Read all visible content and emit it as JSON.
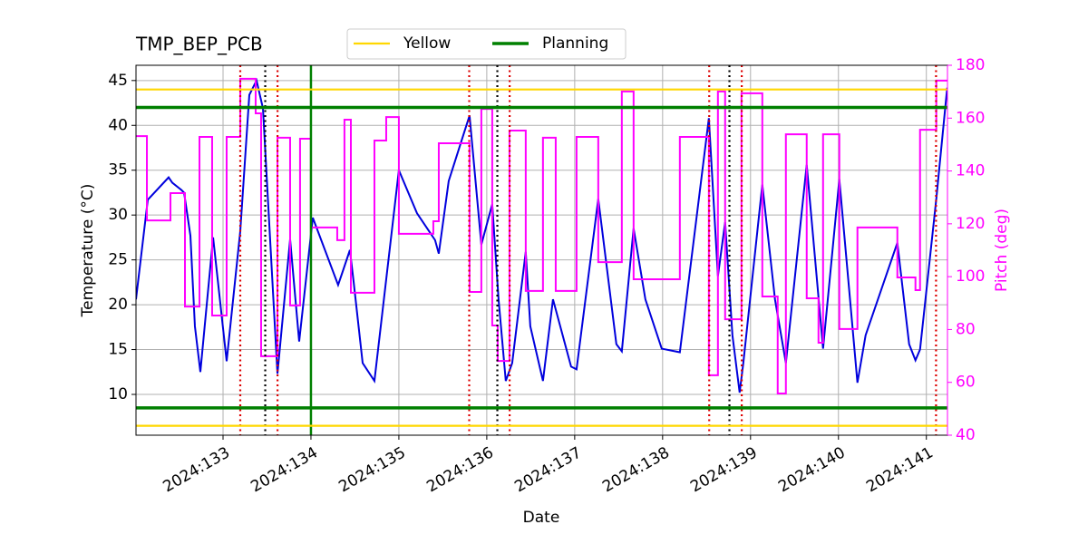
{
  "chart_data": {
    "type": "line",
    "title": "TMP_BEP_PCB",
    "xlabel": "Date",
    "ylabel": "Temperature (°C)",
    "y2label": "Pitch (deg)",
    "y2color": "#ff00ff",
    "grid": true,
    "legend": "upper center",
    "xlim": [
      132.01,
      141.24
    ],
    "xticks": [
      {
        "value": 133,
        "label": "2024:133"
      },
      {
        "value": 134,
        "label": "2024:134"
      },
      {
        "value": 135,
        "label": "2024:135"
      },
      {
        "value": 136,
        "label": "2024:136"
      },
      {
        "value": 137,
        "label": "2024:137"
      },
      {
        "value": 138,
        "label": "2024:138"
      },
      {
        "value": 139,
        "label": "2024:139"
      },
      {
        "value": 140,
        "label": "2024:140"
      },
      {
        "value": 141,
        "label": "2024:141"
      }
    ],
    "ylim": [
      5.45,
      46.7
    ],
    "yticks": [
      10,
      15,
      20,
      25,
      30,
      35,
      40,
      45
    ],
    "y2lim": [
      40,
      180
    ],
    "y2ticks": [
      40,
      60,
      80,
      100,
      120,
      140,
      160,
      180
    ],
    "hlines": [
      {
        "name": "Yellow",
        "color": "#ffd700",
        "values": [
          44,
          6.5
        ]
      },
      {
        "name": "Planning",
        "color": "#008000",
        "values": [
          42,
          8.5
        ]
      }
    ],
    "vlines": [
      {
        "color": "#008000",
        "style": "solid",
        "values": [
          134.0
        ]
      },
      {
        "color": "#dd0000",
        "style": "dotted",
        "values": [
          133.196,
          133.62,
          135.8,
          136.26,
          138.53,
          138.9,
          141.11
        ]
      },
      {
        "color": "#000000",
        "style": "dotted",
        "values": [
          133.48,
          136.12,
          138.76
        ]
      }
    ],
    "series": [
      {
        "color": "#0000dd",
        "drawstyle": "default",
        "x": [
          132.01,
          132.144,
          132.381,
          132.423,
          132.526,
          132.557,
          132.629,
          132.68,
          132.742,
          132.887,
          133.041,
          133.196,
          133.299,
          133.381,
          133.454,
          133.619,
          133.763,
          133.866,
          134.021,
          134.309,
          134.361,
          134.443,
          134.485,
          134.588,
          134.722,
          135.0,
          135.206,
          135.412,
          135.454,
          135.567,
          135.804,
          135.938,
          136.062,
          136.134,
          136.216,
          136.289,
          136.443,
          136.495,
          136.639,
          136.753,
          136.959,
          137.021,
          137.268,
          137.474,
          137.536,
          137.67,
          137.804,
          137.99,
          138.196,
          138.526,
          138.629,
          138.711,
          138.794,
          138.876,
          138.918,
          139.134,
          139.278,
          139.402,
          139.639,
          139.825,
          140.01,
          140.216,
          140.309,
          140.67,
          140.804,
          140.876,
          140.928,
          141.113,
          141.237
        ],
        "values": [
          20.6,
          31.7,
          34.2,
          33.6,
          32.8,
          32.5,
          27.7,
          17.6,
          12.5,
          27.5,
          13.7,
          28.2,
          43.4,
          45.0,
          41.9,
          12.3,
          27.3,
          15.9,
          29.7,
          22.2,
          23.7,
          26.1,
          22.6,
          13.5,
          11.5,
          35.0,
          30.2,
          27.2,
          25.7,
          33.8,
          41.1,
          26.7,
          31.2,
          20.6,
          11.5,
          13.5,
          25.9,
          17.6,
          11.5,
          20.6,
          13.1,
          12.8,
          31.8,
          15.6,
          14.8,
          28.5,
          20.6,
          15.1,
          14.7,
          40.8,
          23.2,
          29.2,
          16.6,
          10.2,
          13.5,
          33.4,
          20.6,
          13.5,
          35.6,
          15.1,
          34.0,
          11.3,
          16.6,
          26.9,
          15.6,
          13.8,
          15.0,
          31.8,
          44.2
        ]
      },
      {
        "color": "#ff00ff",
        "axis": "y2",
        "drawstyle": "steps-post",
        "x": [
          132.01,
          132.134,
          132.402,
          132.567,
          132.732,
          132.876,
          133.041,
          133.196,
          133.371,
          133.433,
          133.619,
          133.763,
          133.876,
          134.0,
          134.299,
          134.381,
          134.454,
          134.722,
          134.856,
          135.0,
          135.392,
          135.454,
          135.804,
          135.938,
          136.062,
          136.124,
          136.258,
          136.443,
          136.639,
          136.784,
          137.021,
          137.268,
          137.536,
          137.67,
          138.196,
          138.526,
          138.629,
          138.711,
          138.897,
          139.134,
          139.309,
          139.402,
          139.639,
          139.773,
          139.825,
          140.01,
          140.216,
          140.67,
          140.876,
          140.928,
          141.113
        ],
        "values": [
          153.2,
          121.3,
          131.6,
          88.7,
          152.9,
          85.3,
          152.9,
          174.9,
          161.8,
          69.9,
          152.6,
          89.1,
          152.2,
          118.6,
          113.8,
          159.4,
          93.9,
          151.5,
          160.4,
          116.2,
          121.0,
          150.5,
          94.2,
          163.5,
          81.5,
          68.1,
          155.3,
          94.6,
          152.6,
          94.6,
          152.9,
          105.5,
          170.1,
          99.0,
          152.9,
          62.7,
          170.1,
          83.9,
          169.4,
          92.5,
          55.8,
          153.9,
          91.8,
          75.0,
          153.9,
          80.2,
          118.6,
          99.7,
          94.9,
          155.6,
          174.2
        ]
      }
    ]
  }
}
